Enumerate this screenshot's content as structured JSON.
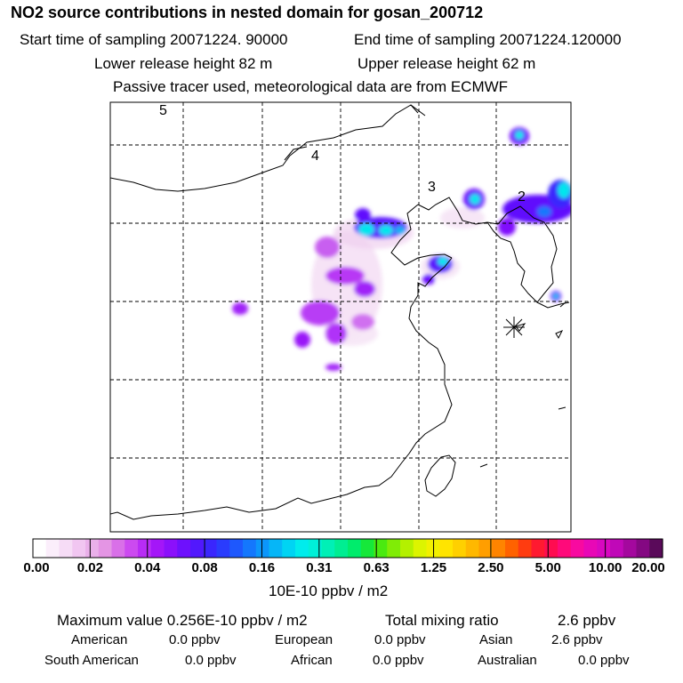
{
  "header": {
    "title": "NO2 source contributions in nested domain for gosan_200712",
    "start_time": "Start time of sampling 20071224. 90000",
    "end_time": "End time of sampling 20071224.120000",
    "lower_height": "Lower release height   82 m",
    "upper_height": "Upper release height   62 m",
    "tracer_note": "Passive tracer used, meteorological data are from ECMWF"
  },
  "map": {
    "region_labels": [
      "5",
      "4",
      "3",
      "2"
    ],
    "receptor": "gosan"
  },
  "colorbar": {
    "unit": "10E-10 ppbv / m2",
    "ticks": [
      "0.00",
      "0.02",
      "0.04",
      "0.08",
      "0.16",
      "0.31",
      "0.63",
      "1.25",
      "2.50",
      "5.00",
      "10.00",
      "20.00"
    ],
    "colors": [
      "#ffffff",
      "#fbeefb",
      "#f6dcf6",
      "#f1c6f1",
      "#eab0ea",
      "#e495e4",
      "#d970e8",
      "#cc4af0",
      "#b82cf5",
      "#a416f8",
      "#8b10fb",
      "#6e10fd",
      "#5218fd",
      "#3a26fd",
      "#2a3cfd",
      "#1e58fd",
      "#1477fd",
      "#0c96fb",
      "#06b6f7",
      "#00d4f3",
      "#00ecec",
      "#00f0d8",
      "#00f0b6",
      "#00ee92",
      "#00ec6c",
      "#16e83a",
      "#4aea10",
      "#80ec06",
      "#b4f000",
      "#dcf400",
      "#f2f000",
      "#ffe400",
      "#ffd000",
      "#ffb800",
      "#ff9e00",
      "#ff8400",
      "#ff6200",
      "#ff3c10",
      "#ff1a30",
      "#ff0c50",
      "#ff0a7a",
      "#f80aa0",
      "#e808b6",
      "#d808c0",
      "#c008b8",
      "#a4089e",
      "#840882",
      "#5a0a5a"
    ]
  },
  "summary": {
    "maximum": "Maximum value  0.256E-10 ppbv / m2",
    "total_label": "Total mixing ratio",
    "total_value": "2.6 ppbv",
    "regions": [
      {
        "name": "American",
        "value": "0.0 ppbv"
      },
      {
        "name": "European",
        "value": "0.0 ppbv"
      },
      {
        "name": "Asian",
        "value": "2.6 ppbv"
      },
      {
        "name": "South American",
        "value": "0.0 ppbv"
      },
      {
        "name": "African",
        "value": "0.0 ppbv"
      },
      {
        "name": "Australian",
        "value": "0.0 ppbv"
      }
    ]
  }
}
